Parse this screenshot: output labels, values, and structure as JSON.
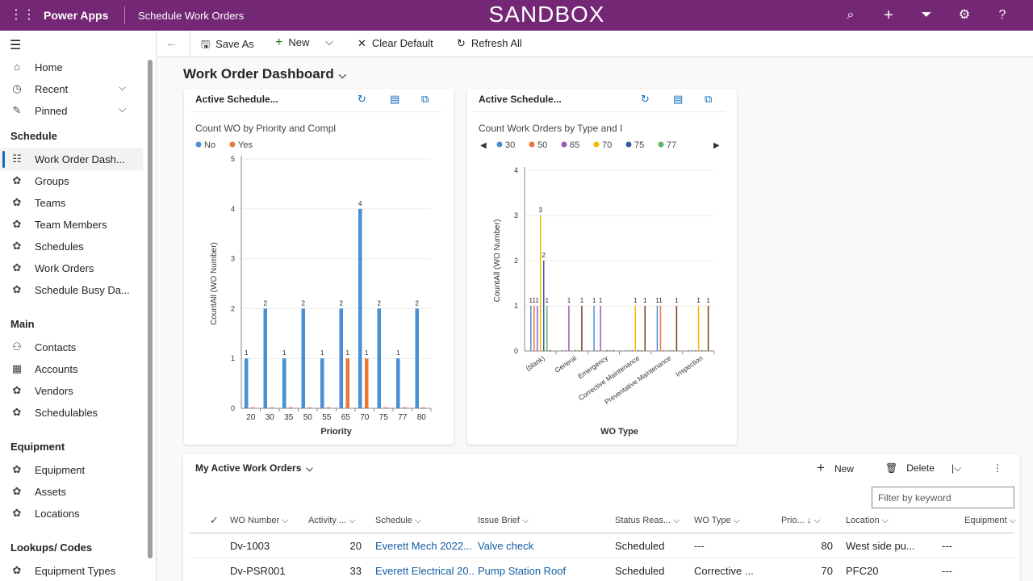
{
  "topbar": {
    "app_name": "Power Apps",
    "app_title": "Schedule Work Orders",
    "environment": "SANDBOX"
  },
  "sidebar": {
    "items_top": [
      {
        "label": "Home",
        "icon": "home-icon"
      },
      {
        "label": "Recent",
        "icon": "clock-icon"
      },
      {
        "label": "Pinned",
        "icon": "pin-icon"
      }
    ],
    "sections": [
      {
        "title": "Schedule",
        "items": [
          "Work Order Dash...",
          "Groups",
          "Teams",
          "Team Members",
          "Schedules",
          "Work Orders",
          "Schedule Busy Da..."
        ]
      },
      {
        "title": "Main",
        "items": [
          "Contacts",
          "Accounts",
          "Vendors",
          "Schedulables"
        ]
      },
      {
        "title": "Equipment",
        "items": [
          "Equipment",
          "Assets",
          "Locations"
        ]
      },
      {
        "title": "Lookups/ Codes",
        "items": [
          "Equipment Types"
        ]
      }
    ]
  },
  "commandbar": {
    "save_as": "Save As",
    "new": "New",
    "clear_default": "Clear Default",
    "refresh_all": "Refresh All"
  },
  "dashboard": {
    "title": "Work Order Dashboard"
  },
  "chart1": {
    "card_title": "Active Schedule...",
    "subtitle": "Count WO by Priority and Compl"
  },
  "chart2": {
    "card_title": "Active Schedule...",
    "subtitle": "Count Work Orders by Type and I"
  },
  "chart_data": [
    {
      "type": "bar",
      "title": "Count WO by Priority and Compl",
      "xlabel": "Priority",
      "ylabel": "CountAll (WO Number)",
      "ylim": [
        0,
        5
      ],
      "yticks": [
        0,
        1,
        2,
        3,
        4,
        5
      ],
      "categories": [
        "20",
        "30",
        "35",
        "50",
        "55",
        "65",
        "70",
        "75",
        "77",
        "80"
      ],
      "legend_position": "top-left",
      "series": [
        {
          "name": "No",
          "color": "#4a8fd6",
          "values": [
            1,
            2,
            1,
            2,
            1,
            2,
            4,
            2,
            1,
            2
          ]
        },
        {
          "name": "Yes",
          "color": "#e8773a",
          "values": [
            0,
            0,
            0,
            0,
            0,
            1,
            1,
            0,
            0,
            0
          ]
        }
      ]
    },
    {
      "type": "bar",
      "title": "Count Work Orders by Type and I",
      "xlabel": "WO Type",
      "ylabel": "CountAll (WO Number)",
      "ylim": [
        0,
        4
      ],
      "yticks": [
        0,
        1,
        2,
        3,
        4
      ],
      "categories": [
        "(blank)",
        "General",
        "Emergency",
        "Corrective Maintenance",
        "Preventative Maintenance",
        "Inspection"
      ],
      "legend_position": "top",
      "series": [
        {
          "name": "30",
          "color": "#4a8fd6",
          "values": [
            1,
            0,
            1,
            0,
            1,
            0
          ]
        },
        {
          "name": "50",
          "color": "#e8773a",
          "values": [
            1,
            0,
            0,
            0,
            1,
            0
          ]
        },
        {
          "name": "65",
          "color": "#9b59b6",
          "values": [
            1,
            1,
            1,
            0,
            0,
            0
          ]
        },
        {
          "name": "70",
          "color": "#f5b800",
          "values": [
            3,
            0,
            0,
            1,
            0,
            1
          ]
        },
        {
          "name": "75",
          "color": "#2f5ea8",
          "values": [
            2,
            0,
            0,
            0,
            0,
            0
          ]
        },
        {
          "name": "77",
          "color": "#5cb85c",
          "values": [
            1,
            0,
            0,
            0,
            0,
            0
          ]
        },
        {
          "name": "",
          "color": "#7a3f20",
          "values": [
            0,
            1,
            0,
            1,
            1,
            1
          ]
        }
      ]
    }
  ],
  "grid": {
    "title": "My Active Work Orders",
    "new": "New",
    "delete": "Delete",
    "filter_placeholder": "Filter by keyword",
    "columns": [
      "WO Number",
      "Activity ...",
      "Schedule",
      "Issue Brief",
      "Status Reas...",
      "WO Type",
      "Prio...",
      "Location",
      "Equipment"
    ],
    "rows": [
      {
        "wo": "Dv-1003",
        "activity": "20",
        "schedule": "Everett Mech 2022...",
        "issue": "Valve check",
        "status": "Scheduled",
        "type": "---",
        "priority": "80",
        "location": "West side pu...",
        "equipment": "---"
      },
      {
        "wo": "Dv-PSR001",
        "activity": "33",
        "schedule": "Everett Electrical 20...",
        "issue": "Pump Station Roof",
        "status": "Scheduled",
        "type": "Corrective ...",
        "priority": "70",
        "location": "PFC20",
        "equipment": "---"
      }
    ]
  }
}
